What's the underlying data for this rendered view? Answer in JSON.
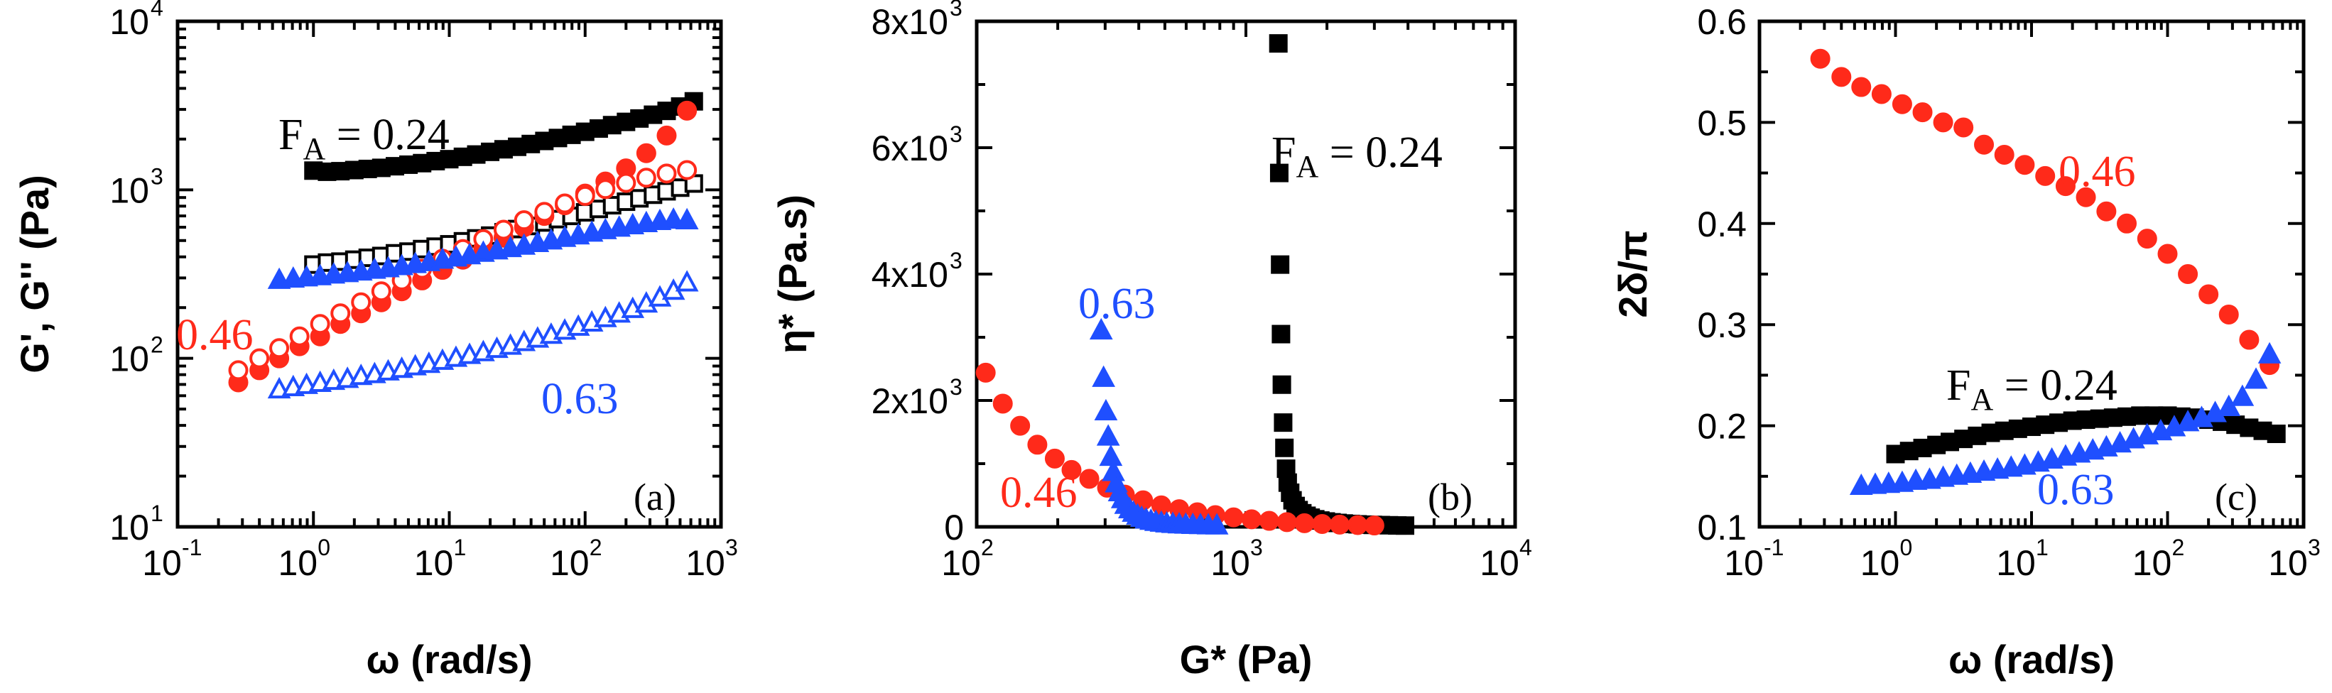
{
  "colors": {
    "black": "#000000",
    "red": "#ff2a1a",
    "blue": "#1f4fff"
  },
  "chart_data": [
    {
      "panel": "(a)",
      "type": "scatter",
      "xlabel": "ω (rad/s)",
      "ylabel": "G', G'' (Pa)",
      "xscale": "log",
      "yscale": "log",
      "xlim": [
        0.1,
        1000
      ],
      "ylim": [
        10,
        10000
      ],
      "xticks": [
        {
          "base": "10",
          "exp": "-1"
        },
        {
          "base": "10",
          "exp": "0"
        },
        {
          "base": "10",
          "exp": "1"
        },
        {
          "base": "10",
          "exp": "2"
        },
        {
          "base": "10",
          "exp": "3"
        }
      ],
      "yticks": [
        {
          "base": "10",
          "exp": "1"
        },
        {
          "base": "10",
          "exp": "2"
        },
        {
          "base": "10",
          "exp": "3"
        },
        {
          "base": "10",
          "exp": "4"
        }
      ],
      "annotations": [
        {
          "text": "F",
          "sub": "A",
          "rest": " = 0.24",
          "color": "black"
        },
        {
          "text": "0.46",
          "color": "red"
        },
        {
          "text": "0.63",
          "color": "blue"
        }
      ],
      "series": [
        {
          "color": "black",
          "marker": "square",
          "filled": true,
          "x": [
            1.0,
            1.26,
            1.58,
            2.0,
            2.51,
            3.16,
            3.98,
            5.01,
            6.31,
            7.94,
            10,
            12.6,
            15.8,
            20,
            25.1,
            31.6,
            39.8,
            50.1,
            63.1,
            79.4,
            100,
            126,
            158,
            200,
            251,
            316,
            398,
            501,
            631
          ],
          "y": [
            1300,
            1280,
            1290,
            1310,
            1330,
            1350,
            1380,
            1410,
            1440,
            1480,
            1520,
            1570,
            1620,
            1680,
            1740,
            1800,
            1870,
            1950,
            2030,
            2120,
            2210,
            2310,
            2420,
            2530,
            2650,
            2790,
            2940,
            3120,
            3350
          ]
        },
        {
          "color": "black",
          "marker": "square",
          "filled": false,
          "x": [
            1.0,
            1.26,
            1.58,
            2.0,
            2.51,
            3.16,
            3.98,
            5.01,
            6.31,
            7.94,
            10,
            12.6,
            15.8,
            20,
            25.1,
            31.6,
            39.8,
            50.1,
            63.1,
            79.4,
            100,
            126,
            158,
            200,
            251,
            316,
            398,
            501,
            631
          ],
          "y": [
            360,
            370,
            375,
            385,
            395,
            405,
            420,
            430,
            445,
            460,
            475,
            495,
            515,
            535,
            560,
            585,
            610,
            640,
            670,
            700,
            735,
            770,
            810,
            850,
            890,
            935,
            980,
            1030,
            1090
          ]
        },
        {
          "color": "red",
          "marker": "circle",
          "filled": true,
          "x": [
            0.28,
            0.4,
            0.56,
            0.79,
            1.12,
            1.58,
            2.24,
            3.16,
            4.47,
            6.31,
            8.91,
            12.6,
            17.8,
            25.1,
            35.5,
            50.1,
            70.8,
            100,
            141,
            200,
            282,
            398,
            562
          ],
          "y": [
            72,
            85,
            100,
            118,
            135,
            160,
            185,
            215,
            250,
            290,
            335,
            385,
            450,
            520,
            600,
            700,
            810,
            950,
            1120,
            1340,
            1650,
            2100,
            2950
          ]
        },
        {
          "color": "red",
          "marker": "circle",
          "filled": false,
          "x": [
            0.28,
            0.4,
            0.56,
            0.79,
            1.12,
            1.58,
            2.24,
            3.16,
            4.47,
            6.31,
            8.91,
            12.6,
            17.8,
            25.1,
            35.5,
            50.1,
            70.8,
            100,
            141,
            200,
            282,
            398,
            562
          ],
          "y": [
            85,
            100,
            115,
            135,
            160,
            185,
            215,
            250,
            290,
            340,
            390,
            445,
            510,
            580,
            660,
            740,
            830,
            920,
            1010,
            1100,
            1180,
            1250,
            1310
          ]
        },
        {
          "color": "blue",
          "marker": "triangle",
          "filled": true,
          "x": [
            0.56,
            0.71,
            0.89,
            1.12,
            1.41,
            1.78,
            2.24,
            2.82,
            3.55,
            4.47,
            5.62,
            7.08,
            8.91,
            11.2,
            14.1,
            17.8,
            22.4,
            28.2,
            35.5,
            44.7,
            56.2,
            70.8,
            89.1,
            112,
            141,
            178,
            224,
            282,
            355,
            447,
            562
          ],
          "y": [
            290,
            295,
            300,
            305,
            312,
            318,
            325,
            333,
            340,
            350,
            360,
            370,
            382,
            394,
            406,
            420,
            434,
            448,
            463,
            480,
            497,
            515,
            533,
            553,
            572,
            592,
            612,
            630,
            648,
            660,
            655
          ]
        },
        {
          "color": "blue",
          "marker": "triangle",
          "filled": false,
          "x": [
            0.56,
            0.71,
            0.89,
            1.12,
            1.41,
            1.78,
            2.24,
            2.82,
            3.55,
            4.47,
            5.62,
            7.08,
            8.91,
            11.2,
            14.1,
            17.8,
            22.4,
            28.2,
            35.5,
            44.7,
            56.2,
            70.8,
            89.1,
            112,
            141,
            178,
            224,
            282,
            355,
            447,
            562
          ],
          "y": [
            65,
            67,
            69,
            71,
            73,
            75,
            78,
            80,
            83,
            86,
            89,
            92,
            96,
            100,
            104,
            108,
            113,
            118,
            124,
            130,
            137,
            145,
            153,
            162,
            172,
            183,
            195,
            210,
            228,
            250,
            280
          ]
        }
      ]
    },
    {
      "panel": "(b)",
      "type": "scatter",
      "xlabel": "G* (Pa)",
      "ylabel": "η* (Pa.s)",
      "xscale": "log",
      "yscale": "linear",
      "xlim": [
        100,
        10000
      ],
      "ylim": [
        0,
        8000
      ],
      "xticks": [
        {
          "base": "10",
          "exp": "2"
        },
        {
          "base": "10",
          "exp": "3"
        },
        {
          "base": "10",
          "exp": "4"
        }
      ],
      "yticks": [
        {
          "value": 0,
          "base": "0",
          "exp": ""
        },
        {
          "value": 2000,
          "base": "2x10",
          "exp": "3"
        },
        {
          "value": 4000,
          "base": "4x10",
          "exp": "3"
        },
        {
          "value": 6000,
          "base": "6x10",
          "exp": "3"
        },
        {
          "value": 8000,
          "base": "8x10",
          "exp": "3"
        }
      ],
      "annotations": [
        {
          "text": "F",
          "sub": "A",
          "rest": " = 0.24",
          "color": "black"
        },
        {
          "text": "0.63",
          "color": "blue"
        },
        {
          "text": "0.46",
          "color": "red"
        }
      ],
      "series": [
        {
          "color": "black",
          "marker": "square",
          "filled": true,
          "x": [
            1320,
            1330,
            1340,
            1350,
            1360,
            1375,
            1390,
            1410,
            1430,
            1460,
            1490,
            1530,
            1570,
            1620,
            1680,
            1740,
            1810,
            1890,
            1980,
            2080,
            2190,
            2310,
            2450,
            2600,
            2770,
            2960,
            3170,
            3400,
            3650,
            3900
          ],
          "y": [
            7650,
            5600,
            4150,
            3050,
            2250,
            1650,
            1250,
            920,
            700,
            540,
            420,
            330,
            265,
            215,
            175,
            145,
            120,
            100,
            85,
            72,
            62,
            53,
            46,
            40,
            35,
            31,
            28,
            25,
            22,
            20
          ]
        },
        {
          "color": "red",
          "marker": "circle",
          "filled": true,
          "x": [
            108,
            125,
            145,
            168,
            195,
            225,
            262,
            305,
            355,
            415,
            485,
            565,
            660,
            770,
            900,
            1050,
            1220,
            1420,
            1650,
            1920,
            2230,
            2600,
            3000
          ],
          "y": [
            2440,
            1950,
            1600,
            1300,
            1080,
            900,
            760,
            620,
            510,
            420,
            340,
            280,
            230,
            185,
            150,
            120,
            95,
            75,
            58,
            45,
            35,
            28,
            22
          ]
        },
        {
          "color": "blue",
          "marker": "triangle",
          "filled": true,
          "x": [
            290,
            296,
            302,
            308,
            315,
            322,
            330,
            339,
            348,
            358,
            370,
            382,
            396,
            410,
            426,
            444,
            463,
            485,
            508,
            535,
            565,
            598,
            635,
            678,
            725,
            780
          ],
          "y": [
            3100,
            2350,
            1820,
            1420,
            1100,
            860,
            680,
            540,
            430,
            340,
            270,
            215,
            170,
            135,
            108,
            87,
            70,
            57,
            46,
            38,
            31,
            26,
            22,
            19,
            16,
            14
          ]
        }
      ]
    },
    {
      "panel": "(c)",
      "type": "scatter",
      "xlabel": "ω (rad/s)",
      "ylabel": "2δ/π",
      "xscale": "log",
      "yscale": "linear",
      "xlim": [
        0.1,
        1000
      ],
      "ylim": [
        0.1,
        0.6
      ],
      "xticks": [
        {
          "base": "10",
          "exp": "-1"
        },
        {
          "base": "10",
          "exp": "0"
        },
        {
          "base": "10",
          "exp": "1"
        },
        {
          "base": "10",
          "exp": "2"
        },
        {
          "base": "10",
          "exp": "3"
        }
      ],
      "yticks": [
        {
          "value": 0.1,
          "base": "0.1",
          "exp": ""
        },
        {
          "value": 0.2,
          "base": "0.2",
          "exp": ""
        },
        {
          "value": 0.3,
          "base": "0.3",
          "exp": ""
        },
        {
          "value": 0.4,
          "base": "0.4",
          "exp": ""
        },
        {
          "value": 0.5,
          "base": "0.5",
          "exp": ""
        },
        {
          "value": 0.6,
          "base": "0.6",
          "exp": ""
        }
      ],
      "annotations": [
        {
          "text": "0.46",
          "color": "red"
        },
        {
          "text": "F",
          "sub": "A",
          "rest": " = 0.24",
          "color": "black"
        },
        {
          "text": "0.63",
          "color": "blue"
        }
      ],
      "series": [
        {
          "color": "red",
          "marker": "circle",
          "filled": true,
          "x": [
            0.28,
            0.4,
            0.56,
            0.79,
            1.12,
            1.58,
            2.24,
            3.16,
            4.47,
            6.31,
            8.91,
            12.6,
            17.8,
            25.1,
            35.5,
            50.1,
            70.8,
            100,
            141,
            200,
            282,
            398,
            562
          ],
          "y": [
            0.563,
            0.545,
            0.535,
            0.528,
            0.518,
            0.51,
            0.5,
            0.495,
            0.478,
            0.468,
            0.458,
            0.447,
            0.437,
            0.426,
            0.412,
            0.4,
            0.385,
            0.37,
            0.35,
            0.33,
            0.31,
            0.285,
            0.26
          ]
        },
        {
          "color": "black",
          "marker": "square",
          "filled": true,
          "x": [
            1.0,
            1.26,
            1.58,
            2.0,
            2.51,
            3.16,
            3.98,
            5.01,
            6.31,
            7.94,
            10,
            12.6,
            15.8,
            20,
            25.1,
            31.6,
            39.8,
            50.1,
            63.1,
            79.4,
            100,
            126,
            158,
            200,
            251,
            316,
            398,
            501,
            631
          ],
          "y": [
            0.172,
            0.175,
            0.178,
            0.181,
            0.184,
            0.187,
            0.19,
            0.193,
            0.195,
            0.197,
            0.199,
            0.201,
            0.203,
            0.205,
            0.206,
            0.207,
            0.208,
            0.209,
            0.21,
            0.21,
            0.21,
            0.209,
            0.208,
            0.206,
            0.204,
            0.201,
            0.198,
            0.195,
            0.192
          ]
        },
        {
          "color": "blue",
          "marker": "triangle",
          "filled": true,
          "x": [
            0.56,
            0.71,
            0.89,
            1.12,
            1.41,
            1.78,
            2.24,
            2.82,
            3.55,
            4.47,
            5.62,
            7.08,
            8.91,
            11.2,
            14.1,
            17.8,
            22.4,
            28.2,
            35.5,
            44.7,
            56.2,
            70.8,
            89.1,
            112,
            141,
            178,
            224,
            282,
            355,
            447,
            562
          ],
          "y": [
            0.14,
            0.141,
            0.142,
            0.143,
            0.145,
            0.146,
            0.148,
            0.15,
            0.152,
            0.154,
            0.156,
            0.158,
            0.16,
            0.163,
            0.166,
            0.169,
            0.172,
            0.175,
            0.178,
            0.182,
            0.186,
            0.19,
            0.194,
            0.198,
            0.203,
            0.207,
            0.212,
            0.218,
            0.228,
            0.245,
            0.27
          ]
        }
      ]
    }
  ]
}
